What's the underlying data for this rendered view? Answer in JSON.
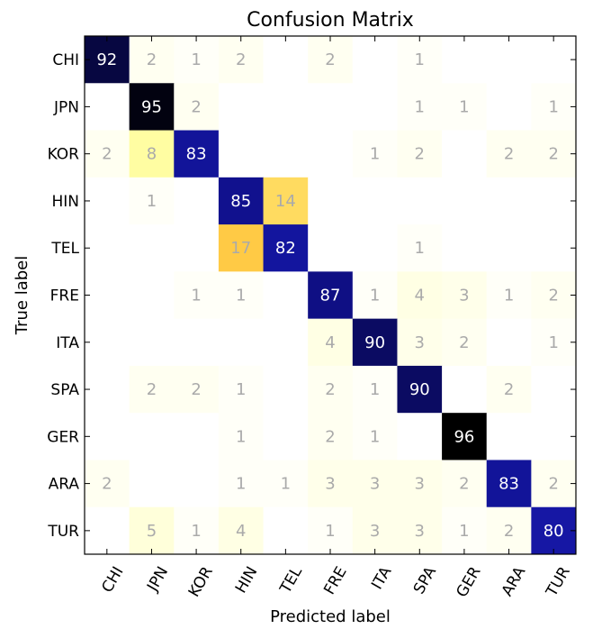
{
  "chart_data": {
    "type": "heatmap",
    "title": "Confusion Matrix",
    "xlabel": "Predicted label",
    "ylabel": "True label",
    "x_categories": [
      "CHI",
      "JPN",
      "KOR",
      "HIN",
      "TEL",
      "FRE",
      "ITA",
      "SPA",
      "GER",
      "ARA",
      "TUR"
    ],
    "y_categories": [
      "CHI",
      "JPN",
      "KOR",
      "HIN",
      "TEL",
      "FRE",
      "ITA",
      "SPA",
      "GER",
      "ARA",
      "TUR"
    ],
    "values": [
      [
        92,
        2,
        1,
        2,
        0,
        2,
        0,
        1,
        0,
        0,
        0
      ],
      [
        0,
        95,
        2,
        0,
        0,
        0,
        0,
        1,
        1,
        0,
        1
      ],
      [
        2,
        8,
        83,
        0,
        0,
        0,
        1,
        2,
        0,
        2,
        2
      ],
      [
        0,
        1,
        0,
        85,
        14,
        0,
        0,
        0,
        0,
        0,
        0
      ],
      [
        0,
        0,
        0,
        17,
        82,
        0,
        0,
        1,
        0,
        0,
        0
      ],
      [
        0,
        0,
        1,
        1,
        0,
        87,
        1,
        4,
        3,
        1,
        2
      ],
      [
        0,
        0,
        0,
        0,
        0,
        4,
        90,
        3,
        2,
        0,
        1
      ],
      [
        0,
        2,
        2,
        1,
        0,
        2,
        1,
        90,
        0,
        2,
        0
      ],
      [
        0,
        0,
        0,
        1,
        0,
        2,
        1,
        0,
        96,
        0,
        0
      ],
      [
        2,
        0,
        0,
        1,
        1,
        3,
        3,
        3,
        2,
        83,
        2
      ],
      [
        0,
        5,
        1,
        4,
        0,
        1,
        3,
        3,
        1,
        2,
        80
      ]
    ],
    "colormap": "gist_stern_r-like (white → yellow → orange → blue → black)",
    "show_zero_labels": false,
    "grid": false
  }
}
